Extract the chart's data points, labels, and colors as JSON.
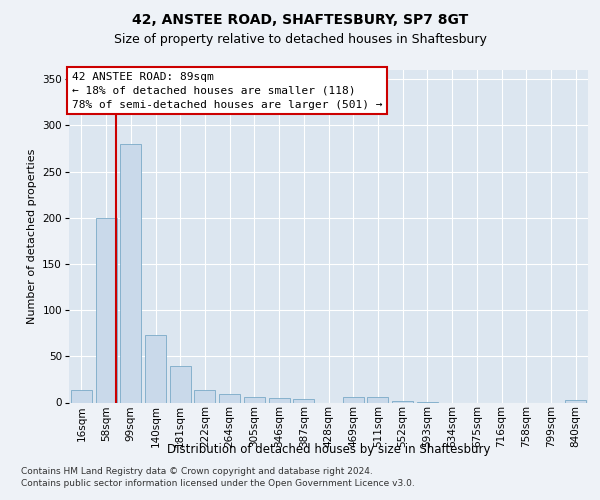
{
  "title_line1": "42, ANSTEE ROAD, SHAFTESBURY, SP7 8GT",
  "title_line2": "Size of property relative to detached houses in Shaftesbury",
  "xlabel": "Distribution of detached houses by size in Shaftesbury",
  "ylabel": "Number of detached properties",
  "bar_labels": [
    "16sqm",
    "58sqm",
    "99sqm",
    "140sqm",
    "181sqm",
    "222sqm",
    "264sqm",
    "305sqm",
    "346sqm",
    "387sqm",
    "428sqm",
    "469sqm",
    "511sqm",
    "552sqm",
    "593sqm",
    "634sqm",
    "675sqm",
    "716sqm",
    "758sqm",
    "799sqm",
    "840sqm"
  ],
  "bar_values": [
    13,
    200,
    280,
    73,
    40,
    14,
    9,
    6,
    5,
    4,
    0,
    6,
    6,
    2,
    1,
    0,
    0,
    0,
    0,
    0,
    3
  ],
  "bar_color": "#c9d9ea",
  "bar_edge_color": "#7aaac8",
  "vline_color": "#cc0000",
  "vline_x_index": 1.42,
  "annotation_text": "42 ANSTEE ROAD: 89sqm\n← 18% of detached houses are smaller (118)\n78% of semi-detached houses are larger (501) →",
  "annotation_box_facecolor": "#ffffff",
  "annotation_box_edgecolor": "#cc0000",
  "ylim": [
    0,
    360
  ],
  "yticks": [
    0,
    50,
    100,
    150,
    200,
    250,
    300,
    350
  ],
  "footer": "Contains HM Land Registry data © Crown copyright and database right 2024.\nContains public sector information licensed under the Open Government Licence v3.0.",
  "bg_color": "#eef2f7",
  "plot_bg_color": "#dce6f0",
  "grid_color": "#ffffff",
  "title1_fontsize": 10,
  "title2_fontsize": 9,
  "ylabel_fontsize": 8,
  "xlabel_fontsize": 8.5,
  "tick_fontsize": 7.5,
  "annotation_fontsize": 8,
  "footer_fontsize": 6.5
}
